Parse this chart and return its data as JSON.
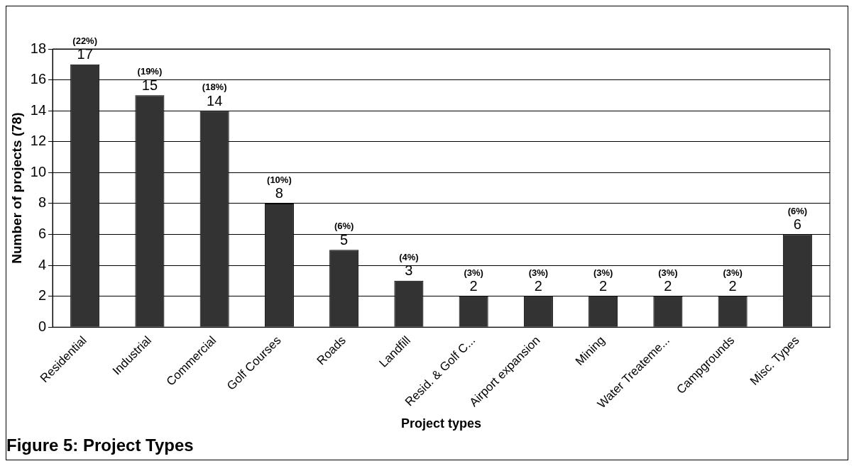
{
  "chart_data": {
    "type": "bar",
    "title": "Figure 5: Project Types",
    "xlabel": "Project types",
    "ylabel": "Number of projects (78)",
    "categories": [
      "Residential",
      "Industrial",
      "Commercial",
      "Golf Courses",
      "Roads",
      "Landfill",
      "Resid. & Golf C...",
      "Airport expansion",
      "Mining",
      "Water Treateme...",
      "Campgrounds",
      "Misc. Types"
    ],
    "values": [
      17,
      15,
      14,
      8,
      5,
      3,
      2,
      2,
      2,
      2,
      2,
      6
    ],
    "color": "#333333",
    "data_labels": true,
    "ylim": [
      0,
      18
    ],
    "yticks": [
      0,
      2,
      4,
      6,
      8,
      10,
      12,
      14,
      16,
      18
    ],
    "grid": "y",
    "legend": false,
    "annotations": [
      {
        "text": "(22%)",
        "x": "Residential",
        "y": 17
      },
      {
        "text": "(19%)",
        "x": "Industrial",
        "y": 15
      },
      {
        "text": "(18%)",
        "x": "Commercial",
        "y": 14
      },
      {
        "text": "(10%)",
        "x": "Golf Courses",
        "y": 8
      },
      {
        "text": "(6%)",
        "x": "Roads",
        "y": 5
      },
      {
        "text": "(4%)",
        "x": "Landfill",
        "y": 3
      },
      {
        "text": "(3%)",
        "x": "Resid. & Golf C...",
        "y": 2
      },
      {
        "text": "(3%)",
        "x": "Airport expansion",
        "y": 2
      },
      {
        "text": "(3%)",
        "x": "Mining",
        "y": 2
      },
      {
        "text": "(3%)",
        "x": "Water Treateme...",
        "y": 2
      },
      {
        "text": "(3%)",
        "x": "Campgrounds",
        "y": 2
      },
      {
        "text": "(6%)",
        "x": "Misc. Types",
        "y": 6
      }
    ]
  }
}
